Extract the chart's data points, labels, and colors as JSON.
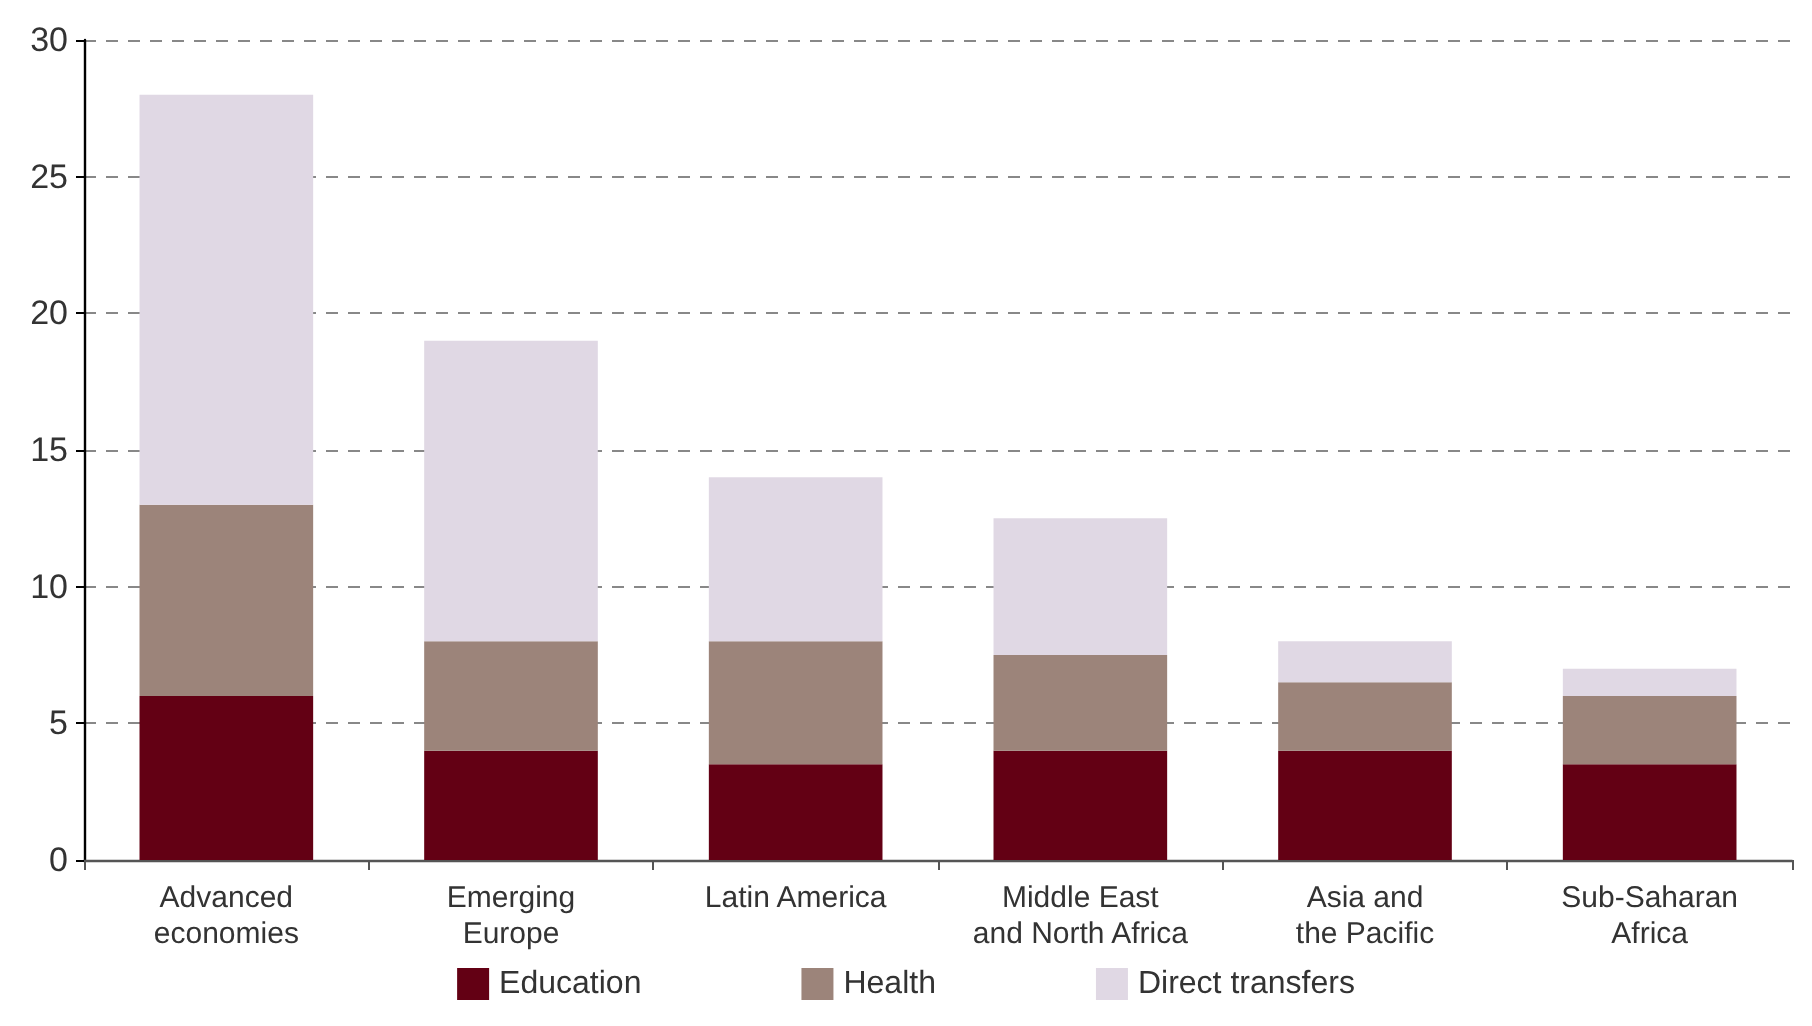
{
  "chart_data": {
    "type": "bar",
    "stacked": true,
    "categories": [
      "Advanced\neconomies",
      "Emerging\nEurope",
      "Latin America",
      "Middle East\nand North Africa",
      "Asia and\nthe Pacific",
      "Sub-Saharan\nAfrica"
    ],
    "series": [
      {
        "name": "Education",
        "color": "#630014",
        "values": [
          6,
          4,
          3.5,
          4,
          4,
          3.5
        ]
      },
      {
        "name": "Health",
        "color": "#9c847a",
        "values": [
          7,
          4,
          4.5,
          3.5,
          2.5,
          2.5
        ]
      },
      {
        "name": "Direct transfers",
        "color": "#e0d8e4",
        "values": [
          15,
          11,
          6,
          5,
          1.5,
          1
        ]
      }
    ],
    "ylim": [
      0,
      30
    ],
    "yticks": [
      0,
      5,
      10,
      15,
      20,
      25,
      30
    ],
    "grid": "y",
    "legend": "bottom"
  }
}
